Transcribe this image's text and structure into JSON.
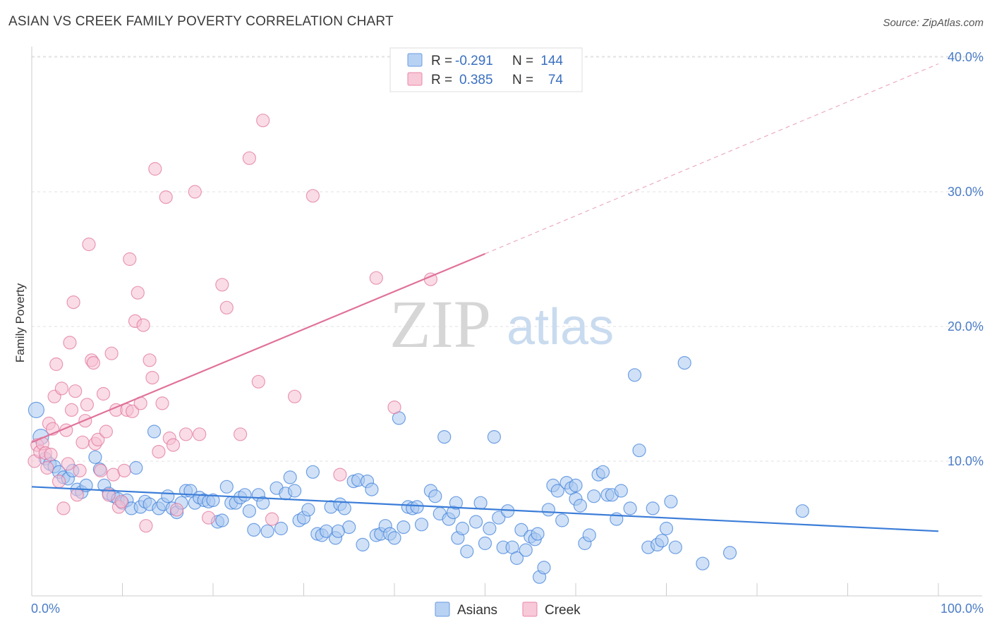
{
  "header": {
    "title": "ASIAN VS CREEK FAMILY POVERTY CORRELATION CHART",
    "source": "Source: ZipAtlas.com"
  },
  "watermark": {
    "zip": "ZIP",
    "atlas": "atlas"
  },
  "legend": {
    "rows": [
      {
        "r_label": "R =",
        "r_value": "-0.291",
        "n_label": "N =",
        "n_value": "144",
        "color": "#6a9be0",
        "fill": "#b8d2f3"
      },
      {
        "r_label": "R =",
        "r_value": "0.385",
        "n_label": "N =",
        "n_value": "74",
        "color": "#e887a6",
        "fill": "#f8c9d8"
      }
    ]
  },
  "chart_data": {
    "type": "scatter",
    "ylabel": "Family Poverty",
    "xlim": [
      0,
      100
    ],
    "ylim": [
      0,
      40
    ],
    "x_tick_labels": [
      "0.0%",
      "100.0%"
    ],
    "y_ticks": [
      10,
      20,
      30,
      40
    ],
    "y_tick_labels": [
      "10.0%",
      "20.0%",
      "30.0%",
      "40.0%"
    ],
    "grid": "horizontal dashed",
    "legend_position": "top-center",
    "series": [
      {
        "name": "Asians",
        "color": "#3b7dd8",
        "fill": "#a9c9f0",
        "trend": {
          "x0": 0,
          "y0": 8.1,
          "x1": 100,
          "y1": 4.8
        },
        "points": [
          [
            0.5,
            13.8
          ],
          [
            1,
            11.8
          ],
          [
            1.5,
            10.2
          ],
          [
            2,
            9.8
          ],
          [
            2.5,
            9.6
          ],
          [
            3,
            9.2
          ],
          [
            3.5,
            8.8
          ],
          [
            4,
            8.7
          ],
          [
            4.5,
            9.3
          ],
          [
            5,
            7.9
          ],
          [
            5.5,
            7.7
          ],
          [
            6,
            8.2
          ],
          [
            7,
            10.3
          ],
          [
            7.5,
            9.4
          ],
          [
            8,
            8.2
          ],
          [
            8.5,
            7.6
          ],
          [
            9,
            7.4
          ],
          [
            9.5,
            7.2
          ],
          [
            10,
            6.9
          ],
          [
            10.5,
            7.1
          ],
          [
            11,
            6.5
          ],
          [
            11.5,
            9.5
          ],
          [
            12,
            6.6
          ],
          [
            12.5,
            7.0
          ],
          [
            13,
            6.8
          ],
          [
            13.5,
            12.2
          ],
          [
            14,
            6.5
          ],
          [
            14.5,
            6.8
          ],
          [
            15,
            7.4
          ],
          [
            15.5,
            6.5
          ],
          [
            16,
            6.2
          ],
          [
            16.5,
            6.9
          ],
          [
            17,
            7.8
          ],
          [
            17.5,
            7.8
          ],
          [
            18,
            6.9
          ],
          [
            18.5,
            7.3
          ],
          [
            19,
            7.1
          ],
          [
            19.5,
            7.0
          ],
          [
            20,
            7.1
          ],
          [
            20.5,
            5.5
          ],
          [
            21,
            5.6
          ],
          [
            21.5,
            8.1
          ],
          [
            22,
            6.9
          ],
          [
            22.5,
            6.9
          ],
          [
            23,
            7.3
          ],
          [
            23.5,
            7.5
          ],
          [
            24,
            6.3
          ],
          [
            24.5,
            4.9
          ],
          [
            25,
            7.5
          ],
          [
            25.5,
            6.9
          ],
          [
            26,
            4.8
          ],
          [
            27,
            8.0
          ],
          [
            27.5,
            5.0
          ],
          [
            28,
            7.6
          ],
          [
            28.5,
            8.8
          ],
          [
            29,
            7.8
          ],
          [
            29.5,
            5.6
          ],
          [
            30,
            5.8
          ],
          [
            31,
            9.2
          ],
          [
            31.5,
            4.6
          ],
          [
            32,
            4.5
          ],
          [
            32.5,
            4.8
          ],
          [
            33,
            6.6
          ],
          [
            33.5,
            4.3
          ],
          [
            34,
            6.8
          ],
          [
            34.5,
            6.5
          ],
          [
            35,
            5.1
          ],
          [
            35.5,
            8.5
          ],
          [
            36,
            8.6
          ],
          [
            36.5,
            3.8
          ],
          [
            37,
            8.5
          ],
          [
            37.5,
            7.9
          ],
          [
            38,
            4.5
          ],
          [
            38.5,
            4.6
          ],
          [
            39,
            5.2
          ],
          [
            39.5,
            4.6
          ],
          [
            40,
            4.3
          ],
          [
            40.5,
            13.2
          ],
          [
            41,
            5.1
          ],
          [
            41.5,
            6.6
          ],
          [
            42,
            6.5
          ],
          [
            42.5,
            6.6
          ],
          [
            43,
            5.3
          ],
          [
            44,
            7.8
          ],
          [
            44.5,
            7.4
          ],
          [
            45,
            6.1
          ],
          [
            45.5,
            11.8
          ],
          [
            46,
            5.7
          ],
          [
            46.5,
            6.2
          ],
          [
            47,
            4.3
          ],
          [
            47.5,
            5.0
          ],
          [
            48,
            3.3
          ],
          [
            49,
            5.5
          ],
          [
            49.5,
            6.9
          ],
          [
            50,
            3.9
          ],
          [
            50.5,
            5.0
          ],
          [
            51,
            11.8
          ],
          [
            51.5,
            5.8
          ],
          [
            52,
            3.6
          ],
          [
            52.5,
            6.3
          ],
          [
            53,
            3.6
          ],
          [
            53.5,
            2.8
          ],
          [
            54,
            4.9
          ],
          [
            54.5,
            3.4
          ],
          [
            55,
            4.4
          ],
          [
            55.5,
            4.2
          ],
          [
            56,
            1.4
          ],
          [
            56.5,
            2.1
          ],
          [
            57,
            6.4
          ],
          [
            57.5,
            8.2
          ],
          [
            58,
            7.8
          ],
          [
            58.5,
            5.6
          ],
          [
            59,
            8.4
          ],
          [
            59.5,
            8.0
          ],
          [
            60,
            7.2
          ],
          [
            60.5,
            6.7
          ],
          [
            61,
            3.9
          ],
          [
            61.5,
            4.5
          ],
          [
            62,
            7.4
          ],
          [
            62.5,
            9.0
          ],
          [
            63,
            9.2
          ],
          [
            63.5,
            7.5
          ],
          [
            64,
            7.5
          ],
          [
            64.5,
            5.7
          ],
          [
            65,
            7.8
          ],
          [
            66,
            6.5
          ],
          [
            66.5,
            16.4
          ],
          [
            67,
            10.8
          ],
          [
            68,
            3.6
          ],
          [
            68.5,
            6.5
          ],
          [
            69,
            3.8
          ],
          [
            69.5,
            4.1
          ],
          [
            70,
            5.0
          ],
          [
            70.5,
            7.0
          ],
          [
            71,
            3.6
          ],
          [
            72,
            17.3
          ],
          [
            74,
            2.4
          ],
          [
            77,
            3.2
          ],
          [
            85,
            6.3
          ],
          [
            60,
            8.2
          ],
          [
            30.5,
            6.4
          ],
          [
            33.8,
            4.8
          ],
          [
            46.8,
            6.9
          ],
          [
            55.8,
            4.6
          ]
        ]
      },
      {
        "name": "Creek",
        "color": "#e0729a",
        "fill": "#f6bfd1",
        "trend": {
          "x0": 0,
          "y0": 11.4,
          "x1": 50,
          "y1": 25.4
        },
        "trend_extension": {
          "x0": 50,
          "y0": 25.4,
          "x1": 100,
          "y1": 39.5
        },
        "points": [
          [
            0.3,
            10.0
          ],
          [
            0.6,
            11.2
          ],
          [
            0.9,
            10.7
          ],
          [
            1.2,
            11.3
          ],
          [
            1.5,
            10.6
          ],
          [
            1.7,
            9.5
          ],
          [
            1.9,
            12.8
          ],
          [
            2.1,
            10.5
          ],
          [
            2.3,
            12.4
          ],
          [
            2.5,
            14.8
          ],
          [
            2.7,
            17.2
          ],
          [
            3,
            8.5
          ],
          [
            3.3,
            15.4
          ],
          [
            3.5,
            6.5
          ],
          [
            3.8,
            12.3
          ],
          [
            4,
            9.8
          ],
          [
            4.2,
            18.8
          ],
          [
            4.4,
            13.8
          ],
          [
            4.6,
            21.8
          ],
          [
            4.8,
            15.2
          ],
          [
            5,
            7.5
          ],
          [
            5.3,
            9.3
          ],
          [
            5.6,
            11.4
          ],
          [
            5.9,
            13.0
          ],
          [
            6.1,
            14.2
          ],
          [
            6.3,
            26.1
          ],
          [
            6.6,
            17.5
          ],
          [
            6.8,
            17.3
          ],
          [
            7,
            11.3
          ],
          [
            7.3,
            11.6
          ],
          [
            7.6,
            9.3
          ],
          [
            7.9,
            15.0
          ],
          [
            8.2,
            12.2
          ],
          [
            8.5,
            7.5
          ],
          [
            8.8,
            18.0
          ],
          [
            9,
            9.0
          ],
          [
            9.3,
            13.8
          ],
          [
            9.6,
            6.6
          ],
          [
            9.9,
            7.0
          ],
          [
            10.2,
            9.3
          ],
          [
            10.5,
            13.8
          ],
          [
            10.8,
            25.0
          ],
          [
            11.1,
            13.7
          ],
          [
            11.4,
            20.4
          ],
          [
            11.7,
            22.5
          ],
          [
            12,
            14.3
          ],
          [
            12.3,
            20.1
          ],
          [
            12.6,
            5.2
          ],
          [
            13,
            17.5
          ],
          [
            13.3,
            16.2
          ],
          [
            13.6,
            31.7
          ],
          [
            14,
            10.7
          ],
          [
            14.4,
            14.3
          ],
          [
            14.8,
            29.6
          ],
          [
            15.2,
            11.7
          ],
          [
            15.6,
            11.2
          ],
          [
            16,
            6.4
          ],
          [
            17,
            12.0
          ],
          [
            18,
            30.0
          ],
          [
            18.5,
            12.0
          ],
          [
            19.5,
            5.8
          ],
          [
            21,
            23.1
          ],
          [
            21.5,
            21.4
          ],
          [
            23,
            12.0
          ],
          [
            24,
            32.5
          ],
          [
            25,
            15.9
          ],
          [
            25.5,
            35.3
          ],
          [
            26.5,
            5.7
          ],
          [
            29,
            14.8
          ],
          [
            31,
            29.7
          ],
          [
            38,
            23.6
          ],
          [
            40,
            14.0
          ],
          [
            44,
            23.5
          ],
          [
            34,
            9.0
          ]
        ]
      }
    ]
  }
}
